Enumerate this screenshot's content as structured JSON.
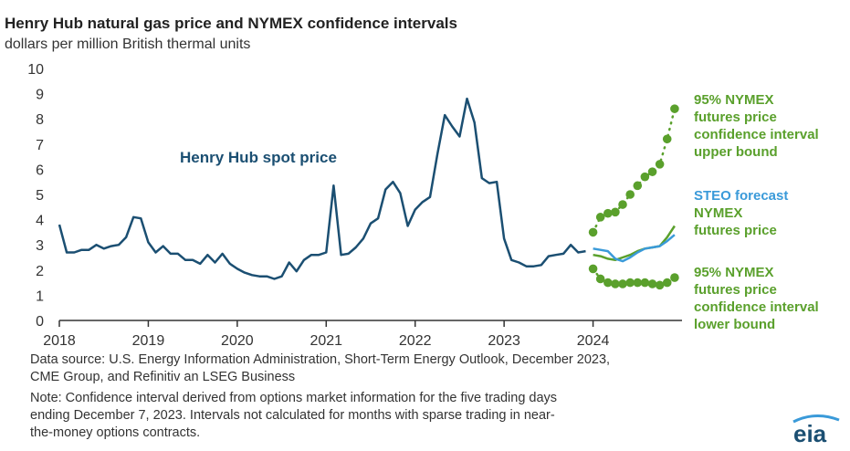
{
  "title": "Henry Hub natural gas price and NYMEX confidence intervals",
  "subtitle": "dollars per million British thermal units",
  "notes": {
    "source_line1": "Data source: U.S. Energy Information Administration, Short-Term Energy Outlook, December 2023,",
    "source_line2": "CME Group, and Refinitiv an LSEG Business",
    "note_line1": "Note: Confidence interval derived from options market information for the five trading days",
    "note_line2": "ending December 7, 2023. Intervals not calculated for months with sparse trading in near-",
    "note_line3": "the-money options contracts."
  },
  "logo_text": "eia",
  "labels": {
    "spot": "Henry Hub spot price",
    "upper": [
      "95% NYMEX",
      "futures price",
      "confidence interval",
      "upper bound"
    ],
    "steo": "STEO forecast",
    "nymex": [
      "NYMEX",
      "futures price"
    ],
    "lower": [
      "95% NYMEX",
      "futures price",
      "confidence interval",
      "lower bound"
    ]
  },
  "colors": {
    "spot": "#1b4f72",
    "steo": "#3a9ad9",
    "nymex": "#5aa02c",
    "interval": "#5aa02c",
    "axis": "#333333",
    "logo": "#1b4f72"
  },
  "chart_data": {
    "type": "line",
    "title": "Henry Hub natural gas price and NYMEX confidence intervals",
    "ylabel": "dollars per million British thermal units",
    "xlim": [
      2018,
      2025
    ],
    "ylim": [
      0,
      10
    ],
    "yticks": [
      0,
      1,
      2,
      3,
      4,
      5,
      6,
      7,
      8,
      9,
      10
    ],
    "xticks": [
      2018,
      2019,
      2020,
      2021,
      2022,
      2023,
      2024
    ],
    "grid": false,
    "series": [
      {
        "name": "Henry Hub spot price",
        "x": [
          2018.0,
          2018.083,
          2018.167,
          2018.25,
          2018.333,
          2018.417,
          2018.5,
          2018.583,
          2018.667,
          2018.75,
          2018.833,
          2018.917,
          2019.0,
          2019.083,
          2019.167,
          2019.25,
          2019.333,
          2019.417,
          2019.5,
          2019.583,
          2019.667,
          2019.75,
          2019.833,
          2019.917,
          2020.0,
          2020.083,
          2020.167,
          2020.25,
          2020.333,
          2020.417,
          2020.5,
          2020.583,
          2020.667,
          2020.75,
          2020.833,
          2020.917,
          2021.0,
          2021.083,
          2021.167,
          2021.25,
          2021.333,
          2021.417,
          2021.5,
          2021.583,
          2021.667,
          2021.75,
          2021.833,
          2021.917,
          2022.0,
          2022.083,
          2022.167,
          2022.25,
          2022.333,
          2022.417,
          2022.5,
          2022.583,
          2022.667,
          2022.75,
          2022.833,
          2022.917,
          2023.0,
          2023.083,
          2023.167,
          2023.25,
          2023.333,
          2023.417,
          2023.5,
          2023.583,
          2023.667,
          2023.75,
          2023.833,
          2023.917
        ],
        "values": [
          3.8,
          2.7,
          2.7,
          2.8,
          2.8,
          3.0,
          2.85,
          2.95,
          3.0,
          3.3,
          4.1,
          4.05,
          3.1,
          2.7,
          2.95,
          2.65,
          2.65,
          2.4,
          2.4,
          2.25,
          2.6,
          2.3,
          2.65,
          2.25,
          2.05,
          1.9,
          1.8,
          1.75,
          1.75,
          1.65,
          1.75,
          2.3,
          1.95,
          2.4,
          2.6,
          2.6,
          2.7,
          5.35,
          2.6,
          2.65,
          2.9,
          3.25,
          3.85,
          4.05,
          5.2,
          5.5,
          5.05,
          3.75,
          4.4,
          4.7,
          4.9,
          6.6,
          8.15,
          7.7,
          7.3,
          8.8,
          7.85,
          5.65,
          5.45,
          5.5,
          3.25,
          2.4,
          2.3,
          2.15,
          2.15,
          2.2,
          2.55,
          2.6,
          2.65,
          3.0,
          2.7,
          2.75
        ]
      },
      {
        "name": "STEO forecast",
        "x": [
          2024.0,
          2024.083,
          2024.167,
          2024.25,
          2024.333,
          2024.417,
          2024.5,
          2024.583,
          2024.667,
          2024.75,
          2024.833,
          2024.917
        ],
        "values": [
          2.85,
          2.8,
          2.75,
          2.45,
          2.35,
          2.5,
          2.7,
          2.85,
          2.9,
          2.95,
          3.15,
          3.4
        ]
      },
      {
        "name": "NYMEX futures price",
        "x": [
          2024.0,
          2024.083,
          2024.167,
          2024.25,
          2024.333,
          2024.417,
          2024.5,
          2024.583,
          2024.667,
          2024.75,
          2024.833,
          2024.917
        ],
        "values": [
          2.6,
          2.55,
          2.45,
          2.4,
          2.5,
          2.6,
          2.75,
          2.85,
          2.9,
          2.95,
          3.3,
          3.75
        ]
      },
      {
        "name": "95% NYMEX futures price confidence interval upper bound",
        "x": [
          2024.0,
          2024.083,
          2024.167,
          2024.25,
          2024.333,
          2024.417,
          2024.5,
          2024.583,
          2024.667,
          2024.75,
          2024.833,
          2024.917
        ],
        "values": [
          3.5,
          4.1,
          4.25,
          4.3,
          4.6,
          5.0,
          5.35,
          5.7,
          5.9,
          6.2,
          7.2,
          8.4
        ]
      },
      {
        "name": "95% NYMEX futures price confidence interval lower bound",
        "x": [
          2024.0,
          2024.083,
          2024.167,
          2024.25,
          2024.333,
          2024.417,
          2024.5,
          2024.583,
          2024.667,
          2024.75,
          2024.833,
          2024.917
        ],
        "values": [
          2.05,
          1.65,
          1.5,
          1.45,
          1.45,
          1.5,
          1.5,
          1.5,
          1.45,
          1.4,
          1.5,
          1.7
        ]
      }
    ]
  }
}
